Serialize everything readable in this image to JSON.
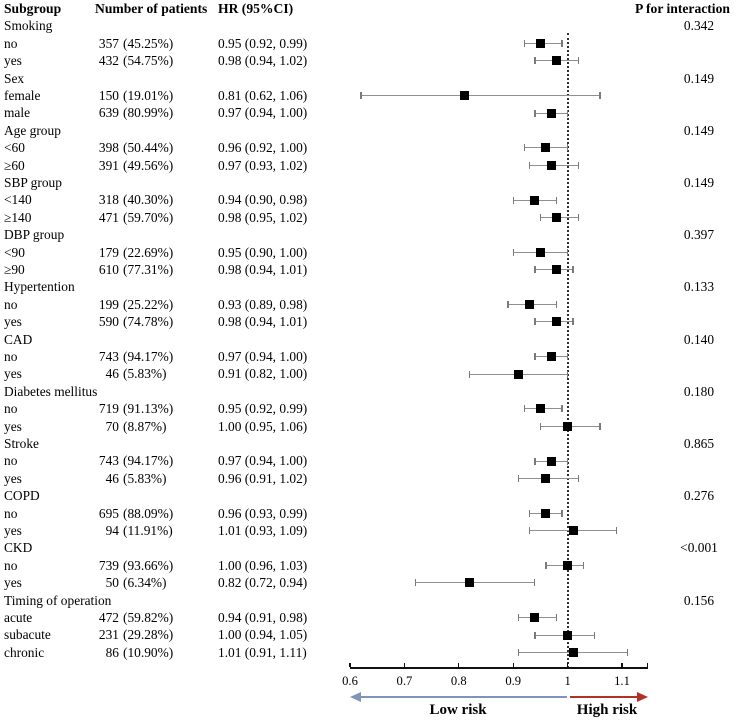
{
  "header": {
    "subgroup": "Subgroup",
    "patients": "Number of patients",
    "hr": "HR (95%CI)",
    "p_interaction": "P for interaction"
  },
  "legend": {
    "low": "Low risk",
    "high": "High risk"
  },
  "colors": {
    "low_arrow": "#7d95b7",
    "high_arrow": "#b2302a",
    "marker": "#000000",
    "ci_line": "#8f8f8f",
    "reference_line": "#2e2e2e",
    "axis": "#111111"
  },
  "chart_data": {
    "type": "forest",
    "x_range": [
      0.6,
      1.148
    ],
    "reference_line": 1.0,
    "tick_values": [
      0.6,
      0.7,
      0.8,
      0.9,
      1.0,
      1.1
    ],
    "tick_labels": [
      "0.6",
      "0.7",
      "0.8",
      "0.9",
      "1",
      "1.1"
    ],
    "rows": [
      {
        "kind": "group",
        "label": "Smoking",
        "p": "0.342"
      },
      {
        "kind": "item",
        "label": "no",
        "count": "357",
        "pct": "(45.25%)",
        "hr_text": "0.95 (0.92, 0.99)",
        "hr": 0.95,
        "lo": 0.92,
        "hi": 0.99
      },
      {
        "kind": "item",
        "label": "yes",
        "count": "432",
        "pct": "(54.75%)",
        "hr_text": "0.98 (0.94, 1.02)",
        "hr": 0.98,
        "lo": 0.94,
        "hi": 1.02
      },
      {
        "kind": "group",
        "label": "Sex",
        "p": "0.149"
      },
      {
        "kind": "item",
        "label": "female",
        "count": "150",
        "pct": "(19.01%)",
        "hr_text": "0.81 (0.62, 1.06)",
        "hr": 0.81,
        "lo": 0.62,
        "hi": 1.06
      },
      {
        "kind": "item",
        "label": "male",
        "count": "639",
        "pct": "(80.99%)",
        "hr_text": "0.97 (0.94, 1.00)",
        "hr": 0.97,
        "lo": 0.94,
        "hi": 1.0
      },
      {
        "kind": "group",
        "label": "Age group",
        "p": "0.149"
      },
      {
        "kind": "item",
        "label": "<60",
        "count": "398",
        "pct": "(50.44%)",
        "hr_text": "0.96 (0.92, 1.00)",
        "hr": 0.96,
        "lo": 0.92,
        "hi": 1.0
      },
      {
        "kind": "item",
        "label": "≥60",
        "count": "391",
        "pct": "(49.56%)",
        "hr_text": "0.97 (0.93, 1.02)",
        "hr": 0.97,
        "lo": 0.93,
        "hi": 1.02
      },
      {
        "kind": "group",
        "label": "SBP group",
        "p": "0.149"
      },
      {
        "kind": "item",
        "label": "<140",
        "count": "318",
        "pct": "(40.30%)",
        "hr_text": "0.94 (0.90, 0.98)",
        "hr": 0.94,
        "lo": 0.9,
        "hi": 0.98
      },
      {
        "kind": "item",
        "label": "≥140",
        "count": "471",
        "pct": "(59.70%)",
        "hr_text": "0.98 (0.95, 1.02)",
        "hr": 0.98,
        "lo": 0.95,
        "hi": 1.02
      },
      {
        "kind": "group",
        "label": "DBP group",
        "p": "0.397"
      },
      {
        "kind": "item",
        "label": "<90",
        "count": "179",
        "pct": "(22.69%)",
        "hr_text": "0.95 (0.90, 1.00)",
        "hr": 0.95,
        "lo": 0.9,
        "hi": 1.0
      },
      {
        "kind": "item",
        "label": "≥90",
        "count": "610",
        "pct": "(77.31%)",
        "hr_text": "0.98 (0.94, 1.01)",
        "hr": 0.98,
        "lo": 0.94,
        "hi": 1.01
      },
      {
        "kind": "group",
        "label": "Hypertention",
        "p": "0.133"
      },
      {
        "kind": "item",
        "label": "no",
        "count": "199",
        "pct": "(25.22%)",
        "hr_text": "0.93 (0.89, 0.98)",
        "hr": 0.93,
        "lo": 0.89,
        "hi": 0.98
      },
      {
        "kind": "item",
        "label": "yes",
        "count": "590",
        "pct": "(74.78%)",
        "hr_text": "0.98 (0.94, 1.01)",
        "hr": 0.98,
        "lo": 0.94,
        "hi": 1.01
      },
      {
        "kind": "group",
        "label": "CAD",
        "p": "0.140"
      },
      {
        "kind": "item",
        "label": "no",
        "count": "743",
        "pct": "(94.17%)",
        "hr_text": "0.97 (0.94, 1.00)",
        "hr": 0.97,
        "lo": 0.94,
        "hi": 1.0
      },
      {
        "kind": "item",
        "label": "yes",
        "count": "46",
        "pct": "(5.83%)",
        "hr_text": "0.91 (0.82, 1.00)",
        "hr": 0.91,
        "lo": 0.82,
        "hi": 1.0
      },
      {
        "kind": "group",
        "label": "Diabetes mellitus",
        "p": "0.180"
      },
      {
        "kind": "item",
        "label": "no",
        "count": "719",
        "pct": "(91.13%)",
        "hr_text": "0.95 (0.92, 0.99)",
        "hr": 0.95,
        "lo": 0.92,
        "hi": 0.99
      },
      {
        "kind": "item",
        "label": "yes",
        "count": "70",
        "pct": "(8.87%)",
        "hr_text": "1.00 (0.95, 1.06)",
        "hr": 1.0,
        "lo": 0.95,
        "hi": 1.06
      },
      {
        "kind": "group",
        "label": "Stroke",
        "p": "0.865"
      },
      {
        "kind": "item",
        "label": "no",
        "count": "743",
        "pct": "(94.17%)",
        "hr_text": "0.97 (0.94, 1.00)",
        "hr": 0.97,
        "lo": 0.94,
        "hi": 1.0
      },
      {
        "kind": "item",
        "label": "yes",
        "count": "46",
        "pct": "(5.83%)",
        "hr_text": "0.96 (0.91, 1.02)",
        "hr": 0.96,
        "lo": 0.91,
        "hi": 1.02
      },
      {
        "kind": "group",
        "label": "COPD",
        "p": "0.276"
      },
      {
        "kind": "item",
        "label": "no",
        "count": "695",
        "pct": "(88.09%)",
        "hr_text": "0.96 (0.93, 0.99)",
        "hr": 0.96,
        "lo": 0.93,
        "hi": 0.99
      },
      {
        "kind": "item",
        "label": "yes",
        "count": "94",
        "pct": "(11.91%)",
        "hr_text": "1.01 (0.93, 1.09)",
        "hr": 1.01,
        "lo": 0.93,
        "hi": 1.09
      },
      {
        "kind": "group",
        "label": "CKD",
        "p": "<0.001"
      },
      {
        "kind": "item",
        "label": "no",
        "count": "739",
        "pct": "(93.66%)",
        "hr_text": "1.00 (0.96, 1.03)",
        "hr": 1.0,
        "lo": 0.96,
        "hi": 1.03
      },
      {
        "kind": "item",
        "label": "yes",
        "count": "50",
        "pct": "(6.34%)",
        "hr_text": "0.82 (0.72, 0.94)",
        "hr": 0.82,
        "lo": 0.72,
        "hi": 0.94
      },
      {
        "kind": "group",
        "label": "Timing of operation",
        "p": "0.156"
      },
      {
        "kind": "item",
        "label": "acute",
        "count": "472",
        "pct": "(59.82%)",
        "hr_text": "0.94 (0.91, 0.98)",
        "hr": 0.94,
        "lo": 0.91,
        "hi": 0.98
      },
      {
        "kind": "item",
        "label": "subacute",
        "count": "231",
        "pct": "(29.28%)",
        "hr_text": "1.00 (0.94, 1.05)",
        "hr": 1.0,
        "lo": 0.94,
        "hi": 1.05
      },
      {
        "kind": "item",
        "label": "chronic",
        "count": "86",
        "pct": "(10.90%)",
        "hr_text": "1.01 (0.91, 1.11)",
        "hr": 1.01,
        "lo": 0.91,
        "hi": 1.11
      }
    ]
  }
}
